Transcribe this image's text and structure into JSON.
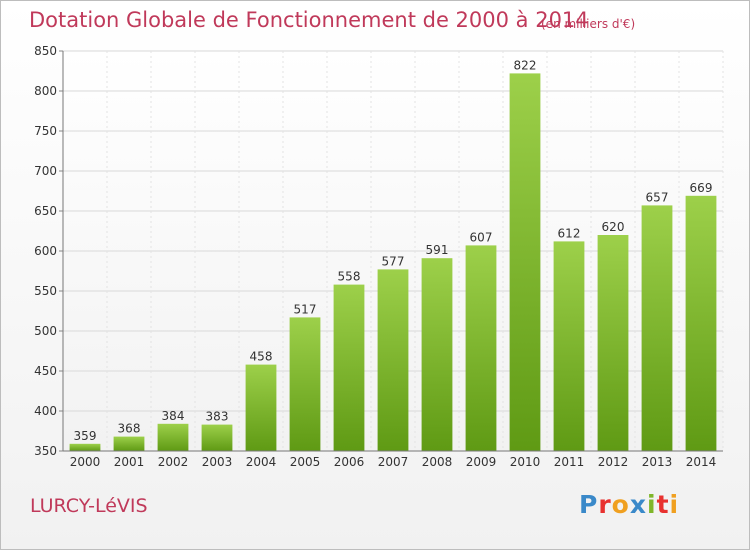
{
  "chart_data": {
    "type": "bar",
    "title": "Dotation Globale de Fonctionnement de 2000 à 2014",
    "subtitle": "(en milliers d'€)",
    "categories": [
      "2000",
      "2001",
      "2002",
      "2003",
      "2004",
      "2005",
      "2006",
      "2007",
      "2008",
      "2009",
      "2010",
      "2011",
      "2012",
      "2013",
      "2014"
    ],
    "values": [
      359,
      368,
      384,
      383,
      458,
      517,
      558,
      577,
      591,
      607,
      822,
      612,
      620,
      657,
      669
    ],
    "ylim": [
      350,
      850
    ],
    "yticks": [
      350,
      400,
      450,
      500,
      550,
      600,
      650,
      700,
      750,
      800,
      850
    ],
    "grid": true,
    "bar_color": "#7fb62a"
  },
  "footer": {
    "place": "LURCY-LéVIS",
    "logo_letters": [
      {
        "ch": "P",
        "color": "#3a89c9"
      },
      {
        "ch": "r",
        "color": "#e8312f"
      },
      {
        "ch": "o",
        "color": "#f0a020"
      },
      {
        "ch": "x",
        "color": "#3a89c9"
      },
      {
        "ch": "i",
        "color": "#7fb62a"
      },
      {
        "ch": "t",
        "color": "#e8312f"
      },
      {
        "ch": "i",
        "color": "#f0a020"
      }
    ]
  }
}
